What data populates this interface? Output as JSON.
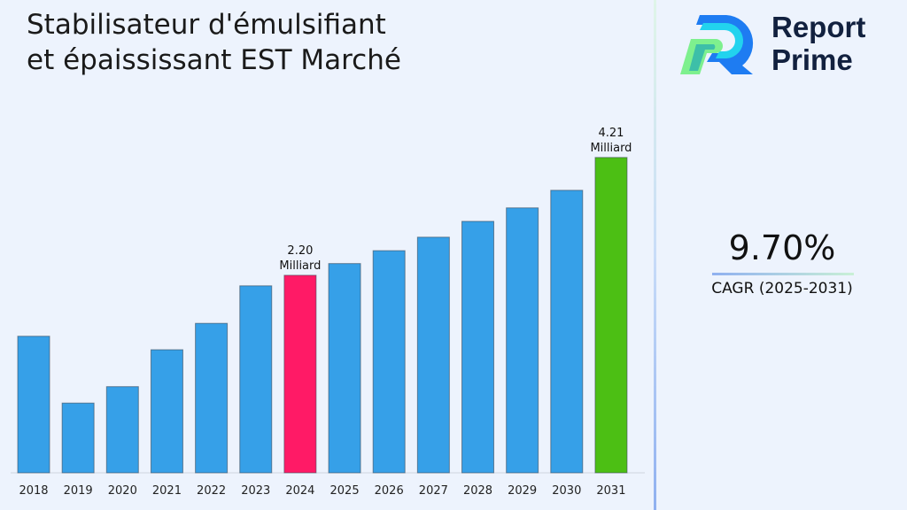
{
  "title": "Stabilisateur d'émulsifiant et épaississant EST Marché",
  "brand": {
    "line1": "Report",
    "line2": "Prime"
  },
  "cagr": {
    "value": "9.70%",
    "label": "CAGR (2025-2031)"
  },
  "colors": {
    "default": "#36a0e8",
    "highlight_2024": "#ff1a66",
    "highlight_2031": "#4cbf14"
  },
  "chart_data": {
    "type": "bar",
    "categories": [
      "2018",
      "2019",
      "2020",
      "2021",
      "2022",
      "2023",
      "2024",
      "2025",
      "2026",
      "2027",
      "2028",
      "2029",
      "2030",
      "2031"
    ],
    "values": [
      1.16,
      0.02,
      0.3,
      0.93,
      1.38,
      2.02,
      2.2,
      2.4,
      2.62,
      2.85,
      3.12,
      3.35,
      3.65,
      4.21
    ],
    "ylim": [
      -1.17,
      4.5
    ],
    "grid": false,
    "data_labels": [
      {
        "category": "2024",
        "value": "2.20",
        "unit": "Milliard"
      },
      {
        "category": "2031",
        "value": "4.21",
        "unit": "Milliard"
      }
    ]
  }
}
